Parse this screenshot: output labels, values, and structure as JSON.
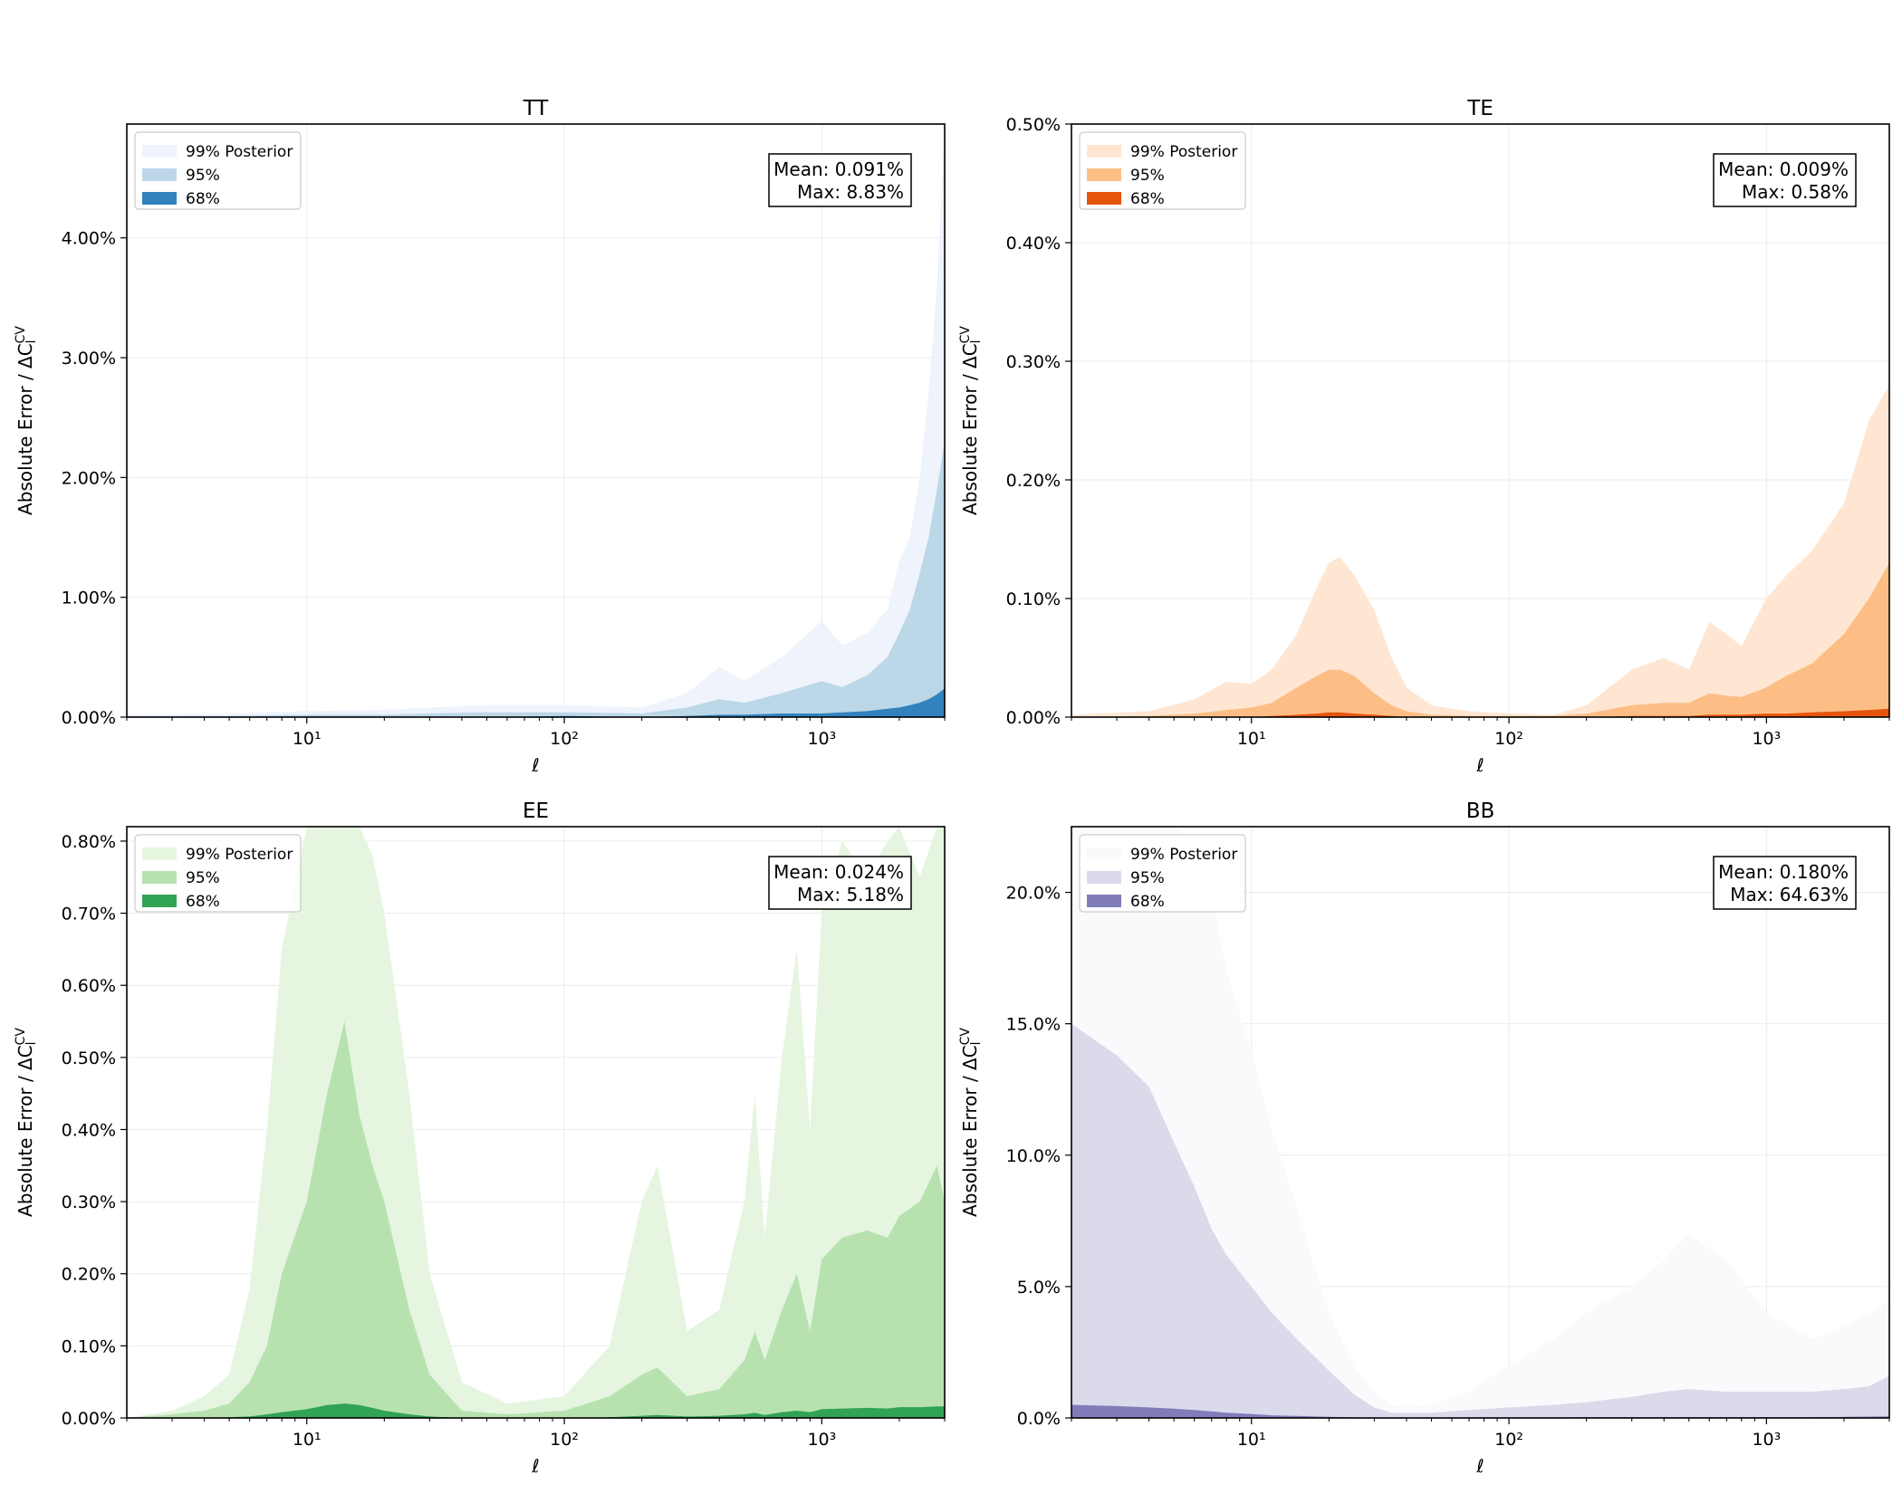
{
  "chart_data": [
    {
      "type": "area",
      "title": "TT",
      "xlabel": "ℓ",
      "ylabel": "Absolute Error / ΔC_l^CV",
      "xscale": "log",
      "xlim": [
        2,
        3000
      ],
      "ylim": [
        0,
        4.95
      ],
      "xticks": [
        {
          "value": 10,
          "label": "10¹"
        },
        {
          "value": 100,
          "label": "10²"
        },
        {
          "value": 1000,
          "label": "10³"
        }
      ],
      "yticks": [
        {
          "value": 0,
          "label": "0.00%"
        },
        {
          "value": 1,
          "label": "1.00%"
        },
        {
          "value": 2,
          "label": "2.00%"
        },
        {
          "value": 3,
          "label": "3.00%"
        },
        {
          "value": 4,
          "label": "4.00%"
        }
      ],
      "legend": {
        "position": "top-left",
        "entries": [
          "99% Posterior",
          "95%",
          "68%"
        ]
      },
      "stats": {
        "mean": "Mean: 0.091%",
        "max": "Max: 8.83%"
      },
      "colors": [
        "#eef3fc",
        "#bcd7e7",
        "#3182bd"
      ],
      "x": [
        2,
        5,
        10,
        20,
        30,
        50,
        100,
        200,
        300,
        400,
        500,
        700,
        1000,
        1200,
        1500,
        1800,
        2000,
        2200,
        2400,
        2600,
        2800,
        3000
      ],
      "series": [
        {
          "name": "99% Posterior",
          "values": [
            0.02,
            0.03,
            0.05,
            0.06,
            0.08,
            0.1,
            0.1,
            0.08,
            0.2,
            0.42,
            0.3,
            0.5,
            0.8,
            0.6,
            0.7,
            0.9,
            1.3,
            1.5,
            2.0,
            2.7,
            3.6,
            4.9
          ]
        },
        {
          "name": "95%",
          "values": [
            0.01,
            0.01,
            0.02,
            0.02,
            0.03,
            0.04,
            0.04,
            0.03,
            0.08,
            0.15,
            0.12,
            0.2,
            0.3,
            0.25,
            0.35,
            0.5,
            0.7,
            0.9,
            1.2,
            1.5,
            1.9,
            2.3
          ]
        },
        {
          "name": "68%",
          "values": [
            0.0,
            0.0,
            0.0,
            0.0,
            0.0,
            0.0,
            0.01,
            0.0,
            0.01,
            0.02,
            0.02,
            0.03,
            0.03,
            0.04,
            0.05,
            0.07,
            0.08,
            0.1,
            0.12,
            0.15,
            0.19,
            0.24
          ]
        }
      ]
    },
    {
      "type": "area",
      "title": "TE",
      "xlabel": "ℓ",
      "ylabel": "Absolute Error / ΔC_l^CV",
      "xscale": "log",
      "xlim": [
        2,
        3000
      ],
      "ylim": [
        0,
        0.5
      ],
      "xticks": [
        {
          "value": 10,
          "label": "10¹"
        },
        {
          "value": 100,
          "label": "10²"
        },
        {
          "value": 1000,
          "label": "10³"
        }
      ],
      "yticks": [
        {
          "value": 0,
          "label": "0.00%"
        },
        {
          "value": 0.1,
          "label": "0.10%"
        },
        {
          "value": 0.2,
          "label": "0.20%"
        },
        {
          "value": 0.3,
          "label": "0.30%"
        },
        {
          "value": 0.4,
          "label": "0.40%"
        },
        {
          "value": 0.5,
          "label": "0.50%"
        }
      ],
      "legend": {
        "position": "top-left",
        "entries": [
          "99% Posterior",
          "95%",
          "68%"
        ]
      },
      "stats": {
        "mean": "Mean: 0.009%",
        "max": "Max: 0.58%"
      },
      "colors": [
        "#fee6d2",
        "#fdbe85",
        "#e6550d"
      ],
      "x": [
        2,
        4,
        6,
        8,
        10,
        12,
        15,
        18,
        20,
        22,
        25,
        30,
        35,
        40,
        50,
        70,
        100,
        150,
        200,
        300,
        400,
        500,
        600,
        700,
        800,
        1000,
        1200,
        1500,
        2000,
        2500,
        3000
      ],
      "series": [
        {
          "name": "99% Posterior",
          "values": [
            0.002,
            0.005,
            0.015,
            0.03,
            0.028,
            0.04,
            0.07,
            0.11,
            0.13,
            0.135,
            0.12,
            0.09,
            0.05,
            0.025,
            0.01,
            0.005,
            0.003,
            0.002,
            0.01,
            0.04,
            0.05,
            0.04,
            0.08,
            0.07,
            0.06,
            0.1,
            0.12,
            0.14,
            0.18,
            0.25,
            0.28
          ]
        },
        {
          "name": "95%",
          "values": [
            0.0,
            0.001,
            0.003,
            0.006,
            0.008,
            0.012,
            0.025,
            0.035,
            0.04,
            0.04,
            0.035,
            0.02,
            0.01,
            0.005,
            0.002,
            0.001,
            0.001,
            0.001,
            0.003,
            0.01,
            0.012,
            0.012,
            0.02,
            0.018,
            0.017,
            0.025,
            0.035,
            0.045,
            0.07,
            0.1,
            0.13
          ]
        },
        {
          "name": "68%",
          "values": [
            0.0,
            0.0,
            0.0,
            0.0,
            0.0,
            0.001,
            0.002,
            0.003,
            0.004,
            0.004,
            0.003,
            0.002,
            0.001,
            0.0,
            0.0,
            0.0,
            0.0,
            0.0,
            0.0,
            0.001,
            0.001,
            0.001,
            0.002,
            0.002,
            0.002,
            0.003,
            0.003,
            0.004,
            0.005,
            0.006,
            0.007
          ]
        }
      ]
    },
    {
      "type": "area",
      "title": "EE",
      "xlabel": "ℓ",
      "ylabel": "Absolute Error / ΔC_l^CV",
      "xscale": "log",
      "xlim": [
        2,
        3000
      ],
      "ylim": [
        0,
        0.82
      ],
      "xticks": [
        {
          "value": 10,
          "label": "10¹"
        },
        {
          "value": 100,
          "label": "10²"
        },
        {
          "value": 1000,
          "label": "10³"
        }
      ],
      "yticks": [
        {
          "value": 0,
          "label": "0.00%"
        },
        {
          "value": 0.1,
          "label": "0.10%"
        },
        {
          "value": 0.2,
          "label": "0.20%"
        },
        {
          "value": 0.3,
          "label": "0.30%"
        },
        {
          "value": 0.4,
          "label": "0.40%"
        },
        {
          "value": 0.5,
          "label": "0.50%"
        },
        {
          "value": 0.6,
          "label": "0.60%"
        },
        {
          "value": 0.7,
          "label": "0.70%"
        },
        {
          "value": 0.8,
          "label": "0.80%"
        }
      ],
      "legend": {
        "position": "top-left",
        "entries": [
          "99% Posterior",
          "95%",
          "68%"
        ]
      },
      "stats": {
        "mean": "Mean: 0.024%",
        "max": "Max: 5.18%"
      },
      "colors": [
        "#e5f5e0",
        "#b7e2b0",
        "#31a354"
      ],
      "x": [
        2,
        3,
        4,
        5,
        6,
        7,
        8,
        10,
        12,
        14,
        16,
        18,
        20,
        25,
        30,
        40,
        60,
        100,
        150,
        200,
        230,
        300,
        400,
        500,
        550,
        600,
        700,
        800,
        900,
        1000,
        1200,
        1500,
        1800,
        2000,
        2400,
        2800,
        3000
      ],
      "series": [
        {
          "name": "99% Posterior",
          "values": [
            0.0,
            0.01,
            0.03,
            0.06,
            0.18,
            0.4,
            0.65,
            0.82,
            0.82,
            0.82,
            0.82,
            0.78,
            0.7,
            0.45,
            0.2,
            0.05,
            0.02,
            0.03,
            0.1,
            0.3,
            0.35,
            0.12,
            0.15,
            0.3,
            0.45,
            0.25,
            0.5,
            0.65,
            0.4,
            0.7,
            0.8,
            0.75,
            0.8,
            0.82,
            0.75,
            0.82,
            0.82
          ]
        },
        {
          "name": "95%",
          "values": [
            0.0,
            0.005,
            0.01,
            0.02,
            0.05,
            0.1,
            0.2,
            0.3,
            0.45,
            0.55,
            0.42,
            0.35,
            0.3,
            0.15,
            0.06,
            0.01,
            0.005,
            0.01,
            0.03,
            0.06,
            0.07,
            0.03,
            0.04,
            0.08,
            0.12,
            0.08,
            0.15,
            0.2,
            0.12,
            0.22,
            0.25,
            0.26,
            0.25,
            0.28,
            0.3,
            0.35,
            0.3
          ]
        },
        {
          "name": "68%",
          "values": [
            0.0,
            0.0,
            0.0,
            0.001,
            0.002,
            0.005,
            0.008,
            0.012,
            0.018,
            0.02,
            0.018,
            0.014,
            0.01,
            0.005,
            0.002,
            0.0,
            0.0,
            0.0,
            0.001,
            0.003,
            0.004,
            0.002,
            0.003,
            0.005,
            0.007,
            0.004,
            0.008,
            0.01,
            0.008,
            0.012,
            0.013,
            0.014,
            0.013,
            0.015,
            0.015,
            0.016,
            0.016
          ]
        }
      ]
    },
    {
      "type": "area",
      "title": "BB",
      "xlabel": "ℓ",
      "ylabel": "Absolute Error / ΔC_l^CV",
      "xscale": "log",
      "xlim": [
        2,
        3000
      ],
      "ylim": [
        0,
        22.5
      ],
      "xticks": [
        {
          "value": 10,
          "label": "10¹"
        },
        {
          "value": 100,
          "label": "10²"
        },
        {
          "value": 1000,
          "label": "10³"
        }
      ],
      "yticks": [
        {
          "value": 0,
          "label": "0.0%"
        },
        {
          "value": 5,
          "label": "5.0%"
        },
        {
          "value": 10,
          "label": "10.0%"
        },
        {
          "value": 15,
          "label": "15.0%"
        },
        {
          "value": 20,
          "label": "20.0%"
        }
      ],
      "legend": {
        "position": "top-left",
        "entries": [
          "99% Posterior",
          "95%",
          "68%"
        ]
      },
      "stats": {
        "mean": "Mean: 0.180%",
        "max": "Max: 64.63%"
      },
      "colors": [
        "#fafafd",
        "#dadaeb",
        "#807dba"
      ],
      "x": [
        2,
        3,
        4,
        5,
        6,
        7,
        8,
        10,
        12,
        15,
        20,
        25,
        30,
        35,
        40,
        50,
        70,
        100,
        150,
        200,
        300,
        400,
        500,
        700,
        1000,
        1500,
        2000,
        2500,
        3000
      ],
      "series": [
        {
          "name": "99% Posterior",
          "values": [
            22.5,
            22.5,
            22.5,
            22.5,
            22.0,
            20.0,
            17.0,
            14.0,
            11.0,
            8.0,
            4.0,
            2.0,
            1.0,
            0.5,
            0.4,
            0.5,
            1.0,
            2.0,
            3.0,
            4.0,
            5.0,
            6.0,
            7.0,
            6.0,
            4.0,
            3.0,
            3.5,
            4.0,
            4.5
          ]
        },
        {
          "name": "95%",
          "values": [
            15.0,
            13.8,
            12.6,
            10.5,
            8.8,
            7.2,
            6.2,
            5.0,
            4.0,
            3.0,
            1.8,
            0.9,
            0.4,
            0.2,
            0.2,
            0.2,
            0.3,
            0.4,
            0.5,
            0.6,
            0.8,
            1.0,
            1.1,
            1.0,
            1.0,
            1.0,
            1.1,
            1.2,
            1.6
          ]
        },
        {
          "name": "68%",
          "values": [
            0.5,
            0.45,
            0.4,
            0.35,
            0.3,
            0.25,
            0.2,
            0.15,
            0.1,
            0.08,
            0.04,
            0.02,
            0.01,
            0.01,
            0.01,
            0.01,
            0.02,
            0.02,
            0.02,
            0.03,
            0.03,
            0.03,
            0.03,
            0.03,
            0.03,
            0.03,
            0.04,
            0.05,
            0.06
          ]
        }
      ]
    }
  ]
}
